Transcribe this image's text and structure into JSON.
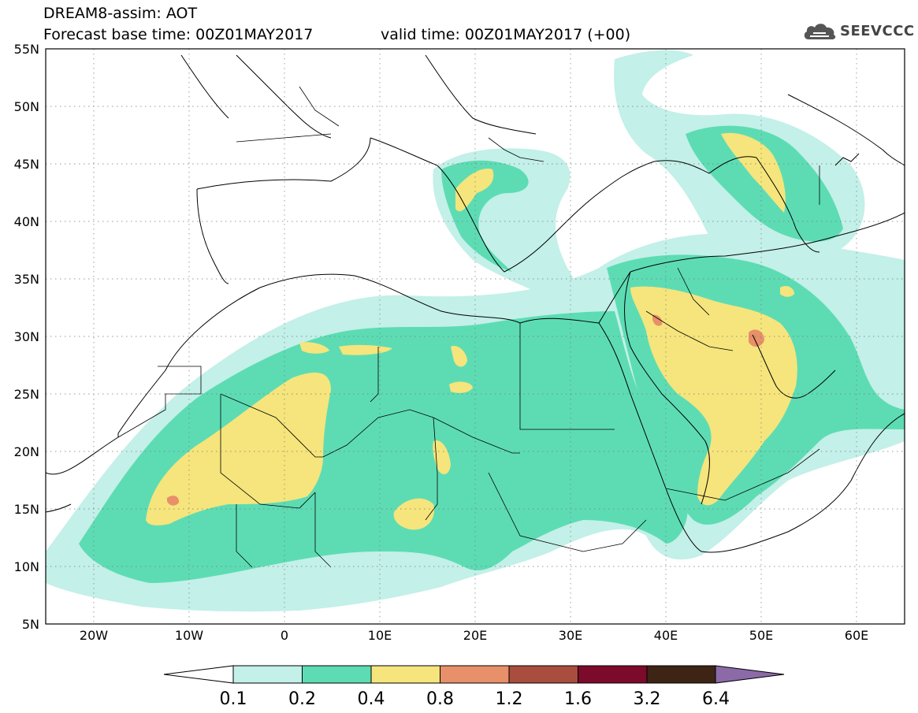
{
  "header": {
    "title": "DREAM8-assim: AOT",
    "base_time": "Forecast base time: 00Z01MAY2017",
    "valid_time": "valid time: 00Z01MAY2017 (+00)"
  },
  "logo": {
    "text": "SEEVCCC",
    "icon": "cloud-icon"
  },
  "map": {
    "projection": "equirectangular",
    "lon_range": [
      -25,
      65
    ],
    "lat_range": [
      5,
      55
    ],
    "lat_labels": [
      "55N",
      "50N",
      "45N",
      "40N",
      "35N",
      "30N",
      "25N",
      "20N",
      "15N",
      "10N",
      "5N"
    ],
    "lon_labels": [
      "20W",
      "10W",
      "0",
      "10E",
      "20E",
      "30E",
      "40E",
      "50E",
      "60E"
    ],
    "grid": "dotted"
  },
  "colorbar": {
    "levels": [
      "0.1",
      "0.2",
      "0.4",
      "0.8",
      "1.2",
      "1.6",
      "3.2",
      "6.4"
    ],
    "colors": [
      "#c3f0e8",
      "#5ddcb4",
      "#f5e57c",
      "#e8906a",
      "#a94d3e",
      "#7c0a2a",
      "#3e2414",
      "#8c6aa8"
    ],
    "below_color": "#ffffff"
  },
  "field_colors": {
    "level_0_1": "#c3f0e8",
    "level_0_2": "#5ddcb4",
    "level_0_4": "#f5e57c",
    "level_0_8": "#e8906a"
  }
}
